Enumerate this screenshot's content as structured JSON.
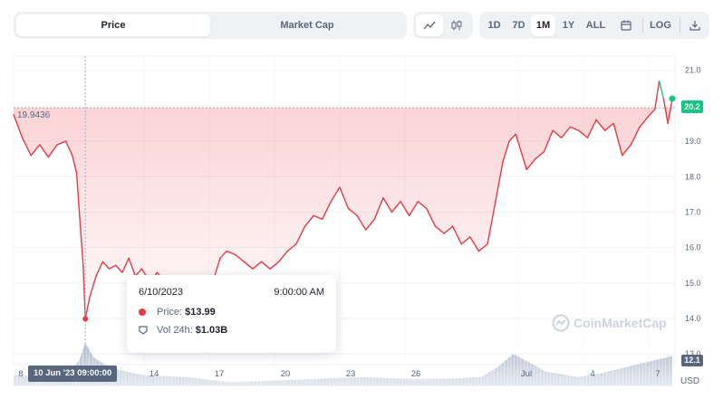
{
  "metric_tabs": [
    {
      "label": "Price",
      "active": true
    },
    {
      "label": "Market Cap",
      "active": false
    }
  ],
  "chart_types": [
    {
      "icon": "line-chart-icon",
      "active": true
    },
    {
      "icon": "candlestick-chart-icon",
      "active": false
    }
  ],
  "ranges": [
    {
      "label": "1D",
      "active": false
    },
    {
      "label": "7D",
      "active": false
    },
    {
      "label": "1M",
      "active": true
    },
    {
      "label": "1Y",
      "active": false
    },
    {
      "label": "ALL",
      "active": false
    }
  ],
  "range_extras": {
    "calendar_icon": "calendar-icon",
    "log_label": "LOG",
    "download_icon": "download-icon"
  },
  "start_price_label": "19.9436",
  "current_price_label": "20.2",
  "volume_label": "12.1",
  "currency_label": "USD",
  "watermark": "CoinMarketCap",
  "x_ticks": [
    "8",
    "14",
    "17",
    "20",
    "23",
    "26",
    "Jul",
    "4",
    "7"
  ],
  "x_active_label": "10 Jun '23   09:00:00",
  "tooltip": {
    "date": "6/10/2023",
    "time": "9:00:00 AM",
    "price_label": "Price:",
    "price_value": "$13.99",
    "vol_label": "Vol 24h:",
    "vol_value": "$1.03B"
  },
  "colors": {
    "down": "#ea3943",
    "up": "#16c784",
    "axis_text": "#58667e"
  },
  "chart_data": {
    "type": "area",
    "title": "",
    "baseline": 19.9436,
    "y_ticks": [
      21.0,
      20.0,
      19.0,
      18.0,
      17.0,
      16.0,
      15.0,
      14.0,
      13.0
    ],
    "ylim": [
      12.7,
      21.4
    ],
    "x_ticks": [
      "8",
      "14",
      "17",
      "20",
      "23",
      "26",
      "Jul",
      "4",
      "7"
    ],
    "price_points": [
      [
        0,
        19.75
      ],
      [
        0.4,
        19.1
      ],
      [
        0.8,
        18.6
      ],
      [
        1.2,
        18.9
      ],
      [
        1.6,
        18.55
      ],
      [
        2.0,
        18.9
      ],
      [
        2.4,
        19.0
      ],
      [
        2.7,
        18.6
      ],
      [
        2.9,
        18.1
      ],
      [
        3.0,
        17.2
      ],
      [
        3.2,
        15.5
      ],
      [
        3.3,
        13.99
      ],
      [
        3.5,
        14.6
      ],
      [
        3.8,
        15.2
      ],
      [
        4.1,
        15.6
      ],
      [
        4.4,
        15.4
      ],
      [
        4.7,
        15.5
      ],
      [
        5.0,
        15.3
      ],
      [
        5.3,
        15.7
      ],
      [
        5.6,
        15.2
      ],
      [
        5.9,
        15.4
      ],
      [
        6.3,
        15.0
      ],
      [
        6.6,
        15.3
      ],
      [
        7.0,
        15.0
      ],
      [
        7.3,
        15.2
      ],
      [
        7.7,
        14.9
      ],
      [
        8.0,
        15.1
      ],
      [
        8.3,
        14.8
      ],
      [
        8.6,
        15.0
      ],
      [
        8.9,
        14.9
      ],
      [
        9.2,
        15.1
      ],
      [
        9.5,
        15.7
      ],
      [
        9.8,
        15.9
      ],
      [
        10.2,
        15.8
      ],
      [
        10.6,
        15.6
      ],
      [
        11.0,
        15.4
      ],
      [
        11.4,
        15.6
      ],
      [
        11.8,
        15.4
      ],
      [
        12.2,
        15.6
      ],
      [
        12.6,
        15.9
      ],
      [
        13.0,
        16.1
      ],
      [
        13.4,
        16.6
      ],
      [
        13.8,
        16.9
      ],
      [
        14.2,
        16.8
      ],
      [
        14.6,
        17.3
      ],
      [
        15.0,
        17.7
      ],
      [
        15.4,
        17.1
      ],
      [
        15.8,
        16.9
      ],
      [
        16.2,
        16.5
      ],
      [
        16.6,
        16.8
      ],
      [
        17.0,
        17.4
      ],
      [
        17.4,
        17.0
      ],
      [
        17.8,
        17.3
      ],
      [
        18.2,
        16.9
      ],
      [
        18.6,
        17.3
      ],
      [
        19.0,
        17.1
      ],
      [
        19.4,
        16.6
      ],
      [
        19.8,
        16.4
      ],
      [
        20.2,
        16.6
      ],
      [
        20.6,
        16.1
      ],
      [
        21.0,
        16.3
      ],
      [
        21.4,
        15.9
      ],
      [
        21.8,
        16.1
      ],
      [
        22.2,
        17.4
      ],
      [
        22.5,
        18.4
      ],
      [
        22.8,
        19.0
      ],
      [
        23.1,
        19.2
      ],
      [
        23.3,
        18.8
      ],
      [
        23.6,
        18.2
      ],
      [
        24.0,
        18.5
      ],
      [
        24.4,
        18.7
      ],
      [
        24.8,
        19.3
      ],
      [
        25.2,
        19.1
      ],
      [
        25.6,
        19.4
      ],
      [
        26.0,
        19.3
      ],
      [
        26.4,
        19.1
      ],
      [
        26.8,
        19.6
      ],
      [
        27.2,
        19.3
      ],
      [
        27.6,
        19.5
      ],
      [
        28.0,
        18.6
      ],
      [
        28.4,
        18.9
      ],
      [
        28.8,
        19.4
      ],
      [
        29.2,
        19.7
      ],
      [
        29.5,
        19.9
      ],
      [
        29.7,
        20.7
      ],
      [
        29.9,
        20.2
      ],
      [
        30.1,
        19.5
      ],
      [
        30.3,
        20.2
      ]
    ],
    "volume_points": [
      [
        0,
        12.4
      ],
      [
        1.5,
        12.35
      ],
      [
        2.5,
        12.45
      ],
      [
        3.0,
        12.8
      ],
      [
        3.3,
        13.3
      ],
      [
        3.7,
        12.9
      ],
      [
        4.5,
        12.6
      ],
      [
        6,
        12.4
      ],
      [
        8,
        12.35
      ],
      [
        10,
        12.2
      ],
      [
        12,
        12.25
      ],
      [
        14,
        12.3
      ],
      [
        16,
        12.35
      ],
      [
        18,
        12.3
      ],
      [
        20,
        12.3
      ],
      [
        21.5,
        12.35
      ],
      [
        22.2,
        12.6
      ],
      [
        23,
        13.0
      ],
      [
        23.6,
        12.8
      ],
      [
        24.5,
        12.5
      ],
      [
        26,
        12.35
      ],
      [
        27,
        12.45
      ],
      [
        28,
        12.6
      ],
      [
        29,
        12.75
      ],
      [
        30,
        12.9
      ],
      [
        30.3,
        12.95
      ]
    ],
    "volume_base": 12.1,
    "grid": true,
    "legend": "none"
  }
}
